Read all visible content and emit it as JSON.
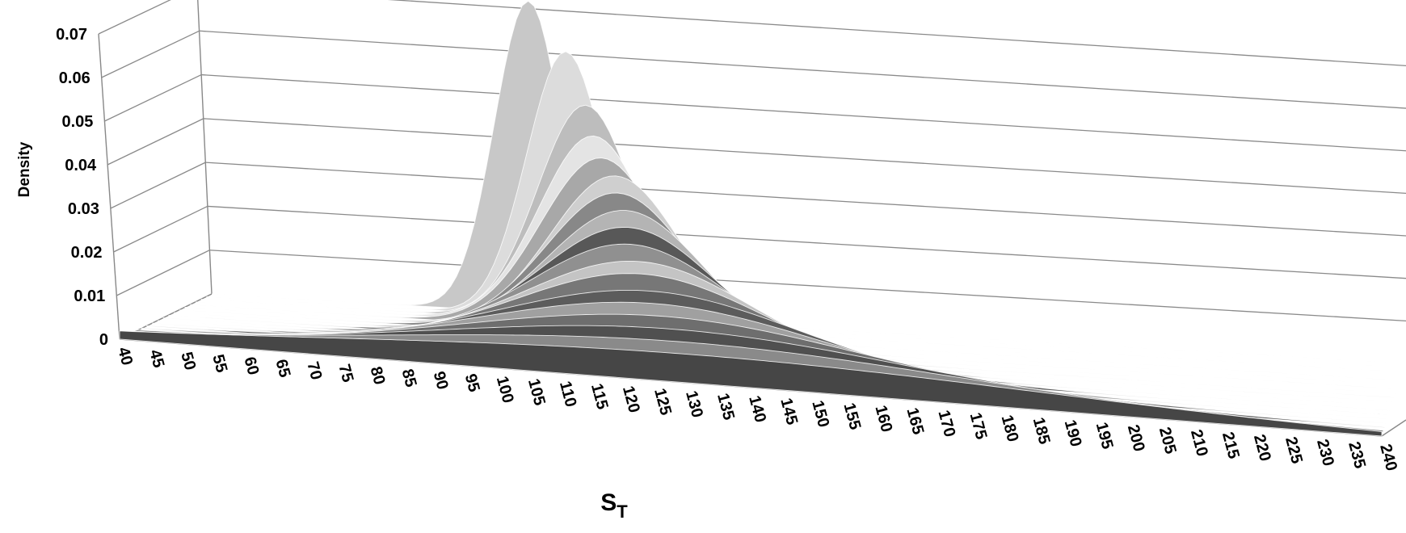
{
  "chart_data": {
    "type": "area",
    "title": "",
    "xlabel": "S",
    "xlabel_subscript": "T",
    "ylabel": "Density",
    "categories": [
      40,
      45,
      50,
      55,
      60,
      65,
      70,
      75,
      80,
      85,
      90,
      95,
      100,
      105,
      110,
      115,
      120,
      125,
      130,
      135,
      140,
      145,
      150,
      155,
      160,
      165,
      170,
      175,
      180,
      185,
      190,
      195,
      200,
      205,
      210,
      215,
      220,
      225,
      230,
      235,
      240
    ],
    "x_tick_labels": [
      "40",
      "45",
      "50",
      "55",
      "60",
      "65",
      "70",
      "75",
      "80",
      "85",
      "90",
      "95",
      "100",
      "105",
      "110",
      "115",
      "120",
      "125",
      "130",
      "135",
      "140",
      "145",
      "150",
      "155",
      "160",
      "165",
      "170",
      "175",
      "180",
      "185",
      "190",
      "195",
      "200",
      "205",
      "210",
      "215",
      "220",
      "225",
      "230",
      "235",
      "240"
    ],
    "y_tick_labels": [
      "0",
      "0.01",
      "0.02",
      "0.03",
      "0.04",
      "0.05",
      "0.06",
      "0.07"
    ],
    "ylim": [
      0,
      0.07
    ],
    "xlim": [
      40,
      240
    ],
    "grid": true,
    "legend": "none",
    "series": [
      {
        "peak_x": 93,
        "peak_y": 0.071,
        "fill": "#c8c8c8"
      },
      {
        "peak_x": 100,
        "peak_y": 0.061,
        "fill": "#dcdcdc"
      },
      {
        "peak_x": 104,
        "peak_y": 0.05,
        "fill": "#bdbdbd"
      },
      {
        "peak_x": 106,
        "peak_y": 0.044,
        "fill": "#e4e4e4"
      },
      {
        "peak_x": 108,
        "peak_y": 0.04,
        "fill": "#a8a8a8"
      },
      {
        "peak_x": 111,
        "peak_y": 0.037,
        "fill": "#cfcfcf"
      },
      {
        "peak_x": 112,
        "peak_y": 0.034,
        "fill": "#888888"
      },
      {
        "peak_x": 114,
        "peak_y": 0.031,
        "fill": "#b4b4b4"
      },
      {
        "peak_x": 115,
        "peak_y": 0.028,
        "fill": "#585858"
      },
      {
        "peak_x": 116,
        "peak_y": 0.025,
        "fill": "#909090"
      },
      {
        "peak_x": 118,
        "peak_y": 0.022,
        "fill": "#c4c4c4"
      },
      {
        "peak_x": 119,
        "peak_y": 0.02,
        "fill": "#777777"
      },
      {
        "peak_x": 121,
        "peak_y": 0.017,
        "fill": "#5c5c5c"
      },
      {
        "peak_x": 122,
        "peak_y": 0.015,
        "fill": "#a0a0a0"
      },
      {
        "peak_x": 124,
        "peak_y": 0.013,
        "fill": "#6e6e6e"
      },
      {
        "peak_x": 126,
        "peak_y": 0.011,
        "fill": "#505050"
      },
      {
        "peak_x": 128,
        "peak_y": 0.009,
        "fill": "#8a8a8a"
      },
      {
        "peak_x": 130,
        "peak_y": 0.007,
        "fill": "#464646"
      }
    ]
  }
}
